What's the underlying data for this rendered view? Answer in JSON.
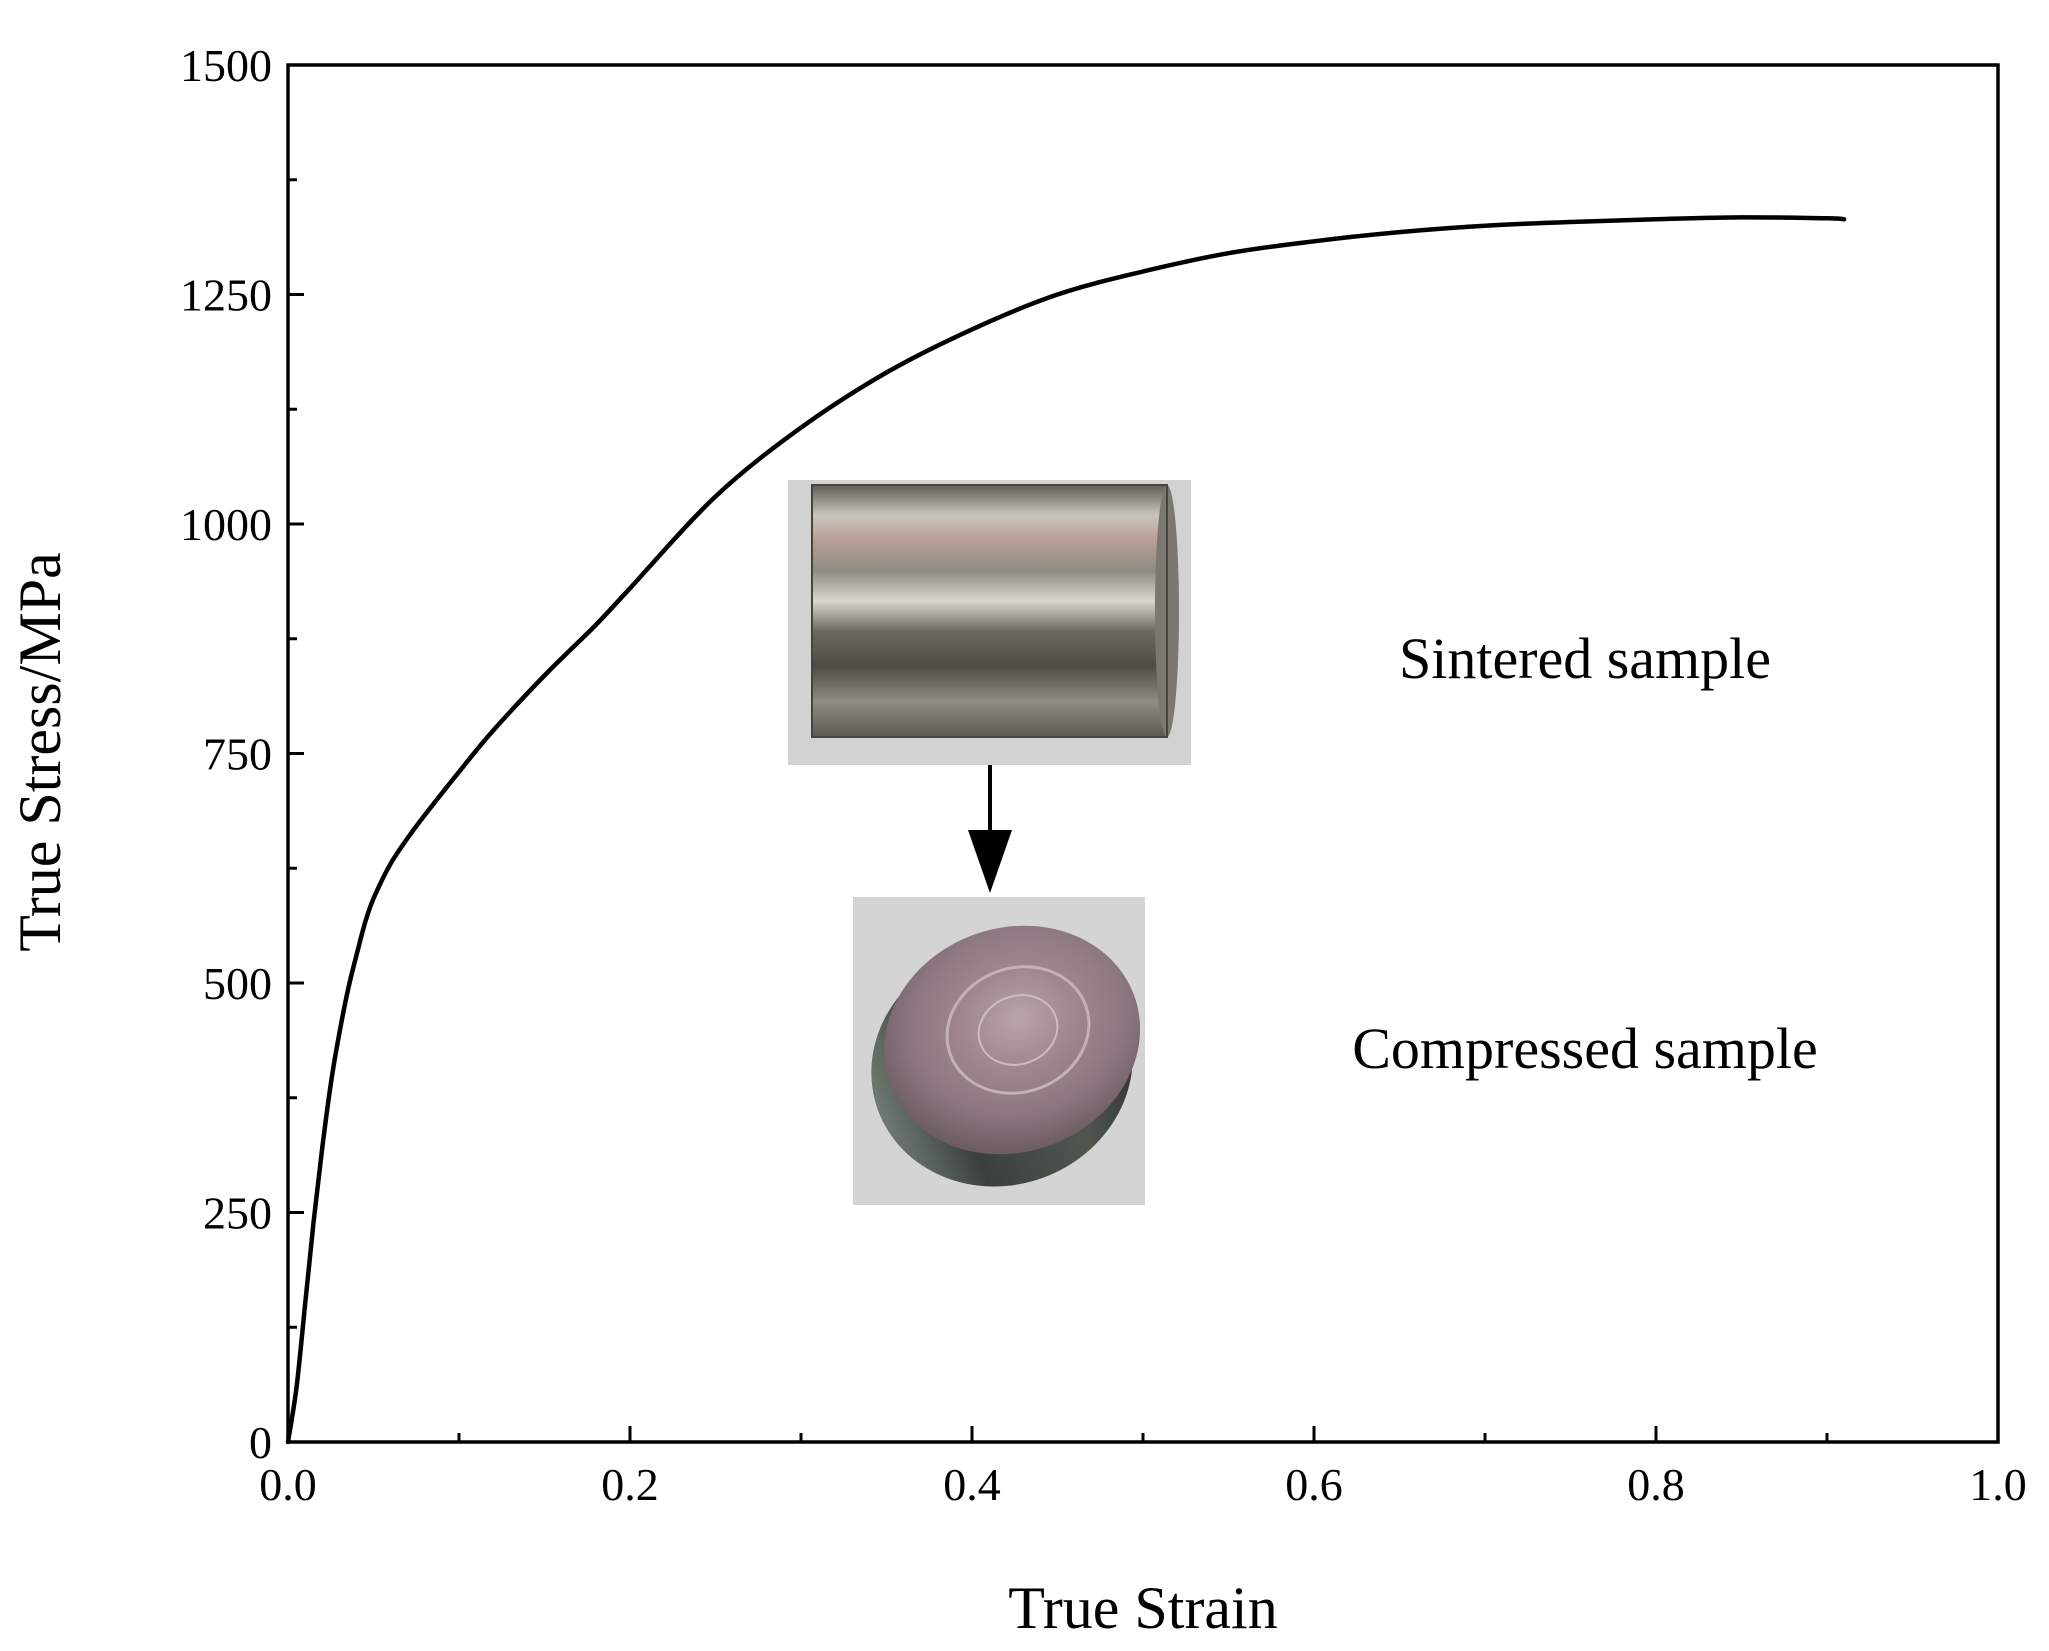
{
  "chart_data": {
    "type": "line",
    "xlabel": "True Strain",
    "ylabel": "True Stress/MPa",
    "xlim": [
      0.0,
      1.0
    ],
    "ylim": [
      0,
      1500
    ],
    "xticks": [
      "0.0",
      "0.2",
      "0.4",
      "0.6",
      "0.8",
      "1.0"
    ],
    "yticks": [
      "0",
      "250",
      "500",
      "750",
      "1000",
      "1250",
      "1500"
    ],
    "grid": false,
    "legend": "none",
    "series": [
      {
        "color": "#000000",
        "x": [
          0.0,
          0.005,
          0.01,
          0.015,
          0.02,
          0.025,
          0.03,
          0.035,
          0.04,
          0.045,
          0.05,
          0.06,
          0.07,
          0.08,
          0.1,
          0.12,
          0.15,
          0.18,
          0.2,
          0.25,
          0.3,
          0.35,
          0.4,
          0.45,
          0.5,
          0.55,
          0.6,
          0.65,
          0.7,
          0.75,
          0.8,
          0.85,
          0.9,
          0.91
        ],
        "y": [
          0,
          60,
          150,
          240,
          320,
          390,
          445,
          492,
          530,
          565,
          592,
          630,
          658,
          683,
          730,
          775,
          835,
          890,
          930,
          1030,
          1105,
          1165,
          1212,
          1250,
          1275,
          1295,
          1308,
          1318,
          1325,
          1329,
          1332,
          1334,
          1333,
          1332
        ]
      }
    ],
    "annotations": [
      {
        "text": "Sintered sample"
      },
      {
        "text": "Compressed sample"
      }
    ]
  },
  "colors": {
    "axis": "#000000",
    "line": "#000000",
    "photo_bg": "#d4d4d4"
  }
}
